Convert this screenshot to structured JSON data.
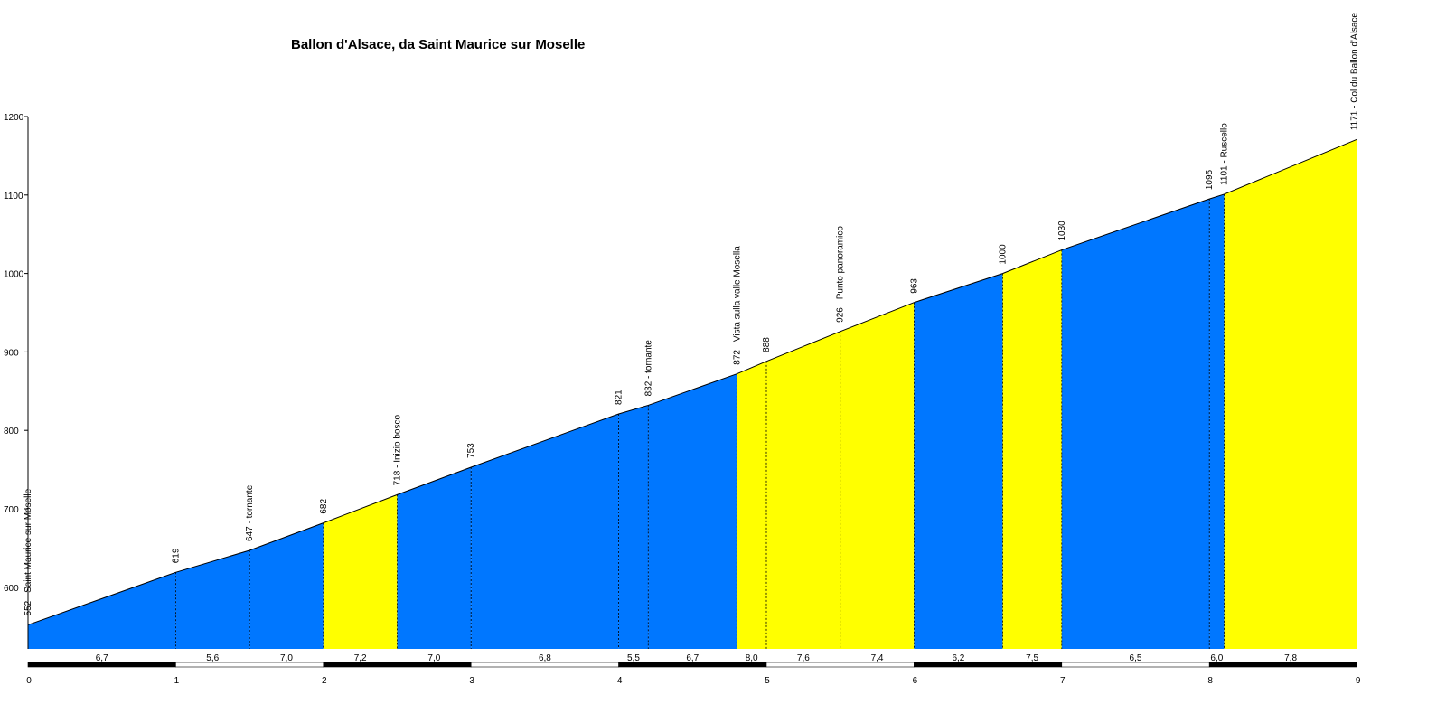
{
  "chart_data": {
    "type": "area",
    "title": "Ballon d'Alsace, da Saint Maurice sur Moselle",
    "xlabel": "",
    "ylabel": "",
    "xlim": [
      0,
      9
    ],
    "ylim": [
      520,
      1200
    ],
    "x_ticks": [
      "0",
      "1",
      "2",
      "3",
      "4",
      "5",
      "6",
      "7",
      "8",
      "9"
    ],
    "y_ticks": [
      "600",
      "700",
      "800",
      "900",
      "1000",
      "1100",
      "1200"
    ],
    "grid": false,
    "colors": {
      "blue": "#0077ff",
      "yellow": "#ffff00",
      "outline": "#000000"
    },
    "profile": [
      {
        "km": 0,
        "alt": 552,
        "label": "552 - Saint Maurice sur Moselle"
      },
      {
        "km": 1,
        "alt": 619,
        "label": "619"
      },
      {
        "km": 1.5,
        "alt": 647,
        "label": "647 - tornante"
      },
      {
        "km": 2,
        "alt": 682,
        "label": "682"
      },
      {
        "km": 2.5,
        "alt": 718,
        "label": "718 - Inizio bosco"
      },
      {
        "km": 3,
        "alt": 753,
        "label": "753"
      },
      {
        "km": 4,
        "alt": 821,
        "label": "821"
      },
      {
        "km": 4.2,
        "alt": 832,
        "label": "832 - tornante"
      },
      {
        "km": 4.8,
        "alt": 872,
        "label": "872 - Vista sulla valle Mosella"
      },
      {
        "km": 5,
        "alt": 888,
        "label": "888"
      },
      {
        "km": 5.5,
        "alt": 926,
        "label": "926 - Punto panoramico"
      },
      {
        "km": 6,
        "alt": 963,
        "label": "963"
      },
      {
        "km": 6.6,
        "alt": 1000,
        "label": "1000"
      },
      {
        "km": 7,
        "alt": 1030,
        "label": "1030"
      },
      {
        "km": 8,
        "alt": 1095,
        "label": "1095"
      },
      {
        "km": 8.1,
        "alt": 1101,
        "label": "1101 - Ruscello"
      },
      {
        "km": 9,
        "alt": 1171,
        "label": "1171 - Col du Ballon d'Alsace"
      }
    ],
    "segments": [
      {
        "from": 0,
        "to": 1,
        "gradient": "6,7",
        "color": "blue"
      },
      {
        "from": 1,
        "to": 1.5,
        "gradient": "5,6",
        "color": "blue"
      },
      {
        "from": 1.5,
        "to": 2,
        "gradient": "7,0",
        "color": "blue"
      },
      {
        "from": 2,
        "to": 2.5,
        "gradient": "7,2",
        "color": "yellow"
      },
      {
        "from": 2.5,
        "to": 3,
        "gradient": "7,0",
        "color": "blue"
      },
      {
        "from": 3,
        "to": 4,
        "gradient": "6,8",
        "color": "blue"
      },
      {
        "from": 4,
        "to": 4.2,
        "gradient": "5,5",
        "color": "blue"
      },
      {
        "from": 4.2,
        "to": 4.8,
        "gradient": "6,7",
        "color": "blue"
      },
      {
        "from": 4.8,
        "to": 5,
        "gradient": "8,0",
        "color": "yellow"
      },
      {
        "from": 5,
        "to": 5.5,
        "gradient": "7,6",
        "color": "yellow"
      },
      {
        "from": 5.5,
        "to": 6,
        "gradient": "7,4",
        "color": "yellow"
      },
      {
        "from": 6,
        "to": 6.6,
        "gradient": "6,2",
        "color": "blue"
      },
      {
        "from": 6.6,
        "to": 7,
        "gradient": "7,5",
        "color": "yellow"
      },
      {
        "from": 7,
        "to": 8,
        "gradient": "6,5",
        "color": "blue"
      },
      {
        "from": 8,
        "to": 8.1,
        "gradient": "6,0",
        "color": "blue"
      },
      {
        "from": 8.1,
        "to": 9,
        "gradient": "7,8",
        "color": "yellow"
      }
    ]
  }
}
